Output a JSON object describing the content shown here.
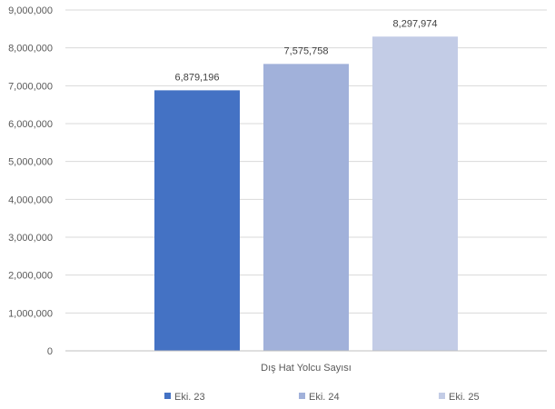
{
  "chart_data": {
    "type": "bar",
    "title": "",
    "xlabel": "",
    "ylabel": "",
    "categories": [
      "Dış Hat Yolcu Sayısı"
    ],
    "series": [
      {
        "name": "Eki. 23",
        "values": [
          6879196
        ],
        "label": "6,879,196",
        "color": "#4472c4"
      },
      {
        "name": "Eki. 24",
        "values": [
          7575758
        ],
        "label": "7,575,758",
        "color": "#a1b1da"
      },
      {
        "name": "Eki. 25",
        "values": [
          8297974
        ],
        "label": "8,297,974",
        "color": "#c3cce6"
      }
    ],
    "ylim": [
      0,
      9000000
    ],
    "yticks": [
      {
        "value": 0,
        "label": "0"
      },
      {
        "value": 1000000,
        "label": "1,000,000"
      },
      {
        "value": 2000000,
        "label": "2,000,000"
      },
      {
        "value": 3000000,
        "label": "3,000,000"
      },
      {
        "value": 4000000,
        "label": "4,000,000"
      },
      {
        "value": 5000000,
        "label": "5,000,000"
      },
      {
        "value": 6000000,
        "label": "6,000,000"
      },
      {
        "value": 7000000,
        "label": "7,000,000"
      },
      {
        "value": 8000000,
        "label": "8,000,000"
      },
      {
        "value": 9000000,
        "label": "9,000,000"
      }
    ],
    "grid": true,
    "legend": "bottom"
  }
}
